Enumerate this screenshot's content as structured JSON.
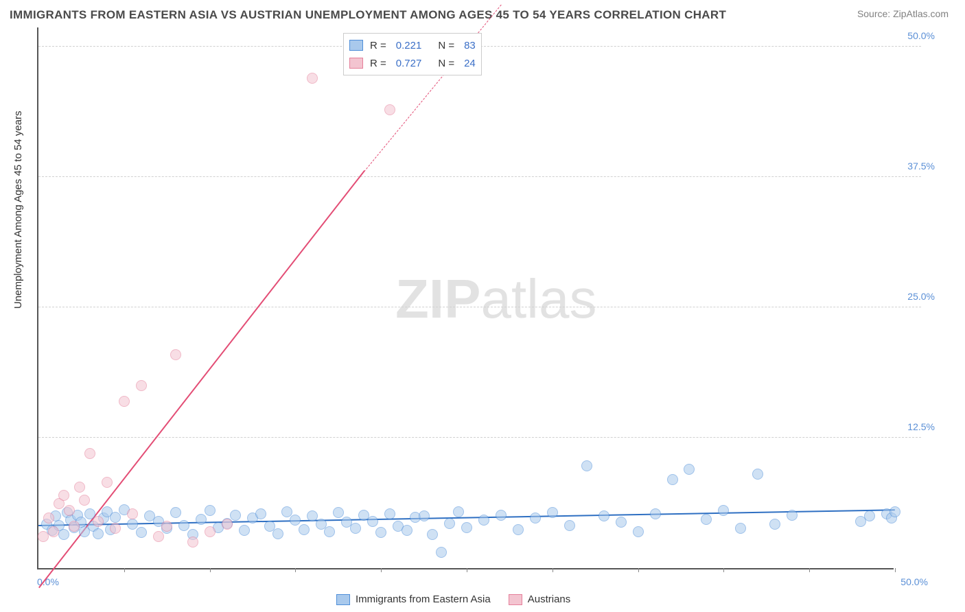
{
  "title": "IMMIGRANTS FROM EASTERN ASIA VS AUSTRIAN UNEMPLOYMENT AMONG AGES 45 TO 54 YEARS CORRELATION CHART",
  "source": "Source: ZipAtlas.com",
  "y_axis_label": "Unemployment Among Ages 45 to 54 years",
  "watermark": {
    "zip": "ZIP",
    "atlas": "atlas"
  },
  "chart": {
    "type": "scatter",
    "xlim": [
      0,
      50
    ],
    "ylim": [
      0,
      52
    ],
    "x_ticks": [
      0,
      5,
      10,
      15,
      20,
      25,
      30,
      35,
      40,
      45,
      50
    ],
    "x_tick_labels": {
      "min": "0.0%",
      "max": "50.0%"
    },
    "y_grid": [
      {
        "val": 12.5,
        "label": "12.5%"
      },
      {
        "val": 25.0,
        "label": "25.0%"
      },
      {
        "val": 37.5,
        "label": "37.5%"
      },
      {
        "val": 50.0,
        "label": "50.0%"
      }
    ],
    "background_color": "#ffffff",
    "grid_color": "#d0d0d0",
    "axis_color": "#555555",
    "point_radius": 8,
    "point_opacity": 0.55,
    "series": [
      {
        "name": "Immigrants from Eastern Asia",
        "color_stroke": "#4f8fd9",
        "color_fill": "#a9c9ec",
        "R": "0.221",
        "N": "83",
        "trend": {
          "x1": 0,
          "y1": 4.0,
          "x2": 50,
          "y2": 5.5,
          "color": "#2e6fc2",
          "width": 2
        },
        "points": [
          [
            0.5,
            4.2
          ],
          [
            0.8,
            3.6
          ],
          [
            1.0,
            5.0
          ],
          [
            1.2,
            4.1
          ],
          [
            1.5,
            3.2
          ],
          [
            1.7,
            5.3
          ],
          [
            1.9,
            4.6
          ],
          [
            2.1,
            3.9
          ],
          [
            2.3,
            5.1
          ],
          [
            2.5,
            4.4
          ],
          [
            2.7,
            3.5
          ],
          [
            3.0,
            5.2
          ],
          [
            3.2,
            4.0
          ],
          [
            3.5,
            3.3
          ],
          [
            3.8,
            4.8
          ],
          [
            4.0,
            5.4
          ],
          [
            4.2,
            3.7
          ],
          [
            4.5,
            4.9
          ],
          [
            5.0,
            5.6
          ],
          [
            5.5,
            4.2
          ],
          [
            6.0,
            3.4
          ],
          [
            6.5,
            5.0
          ],
          [
            7.0,
            4.5
          ],
          [
            7.5,
            3.8
          ],
          [
            8.0,
            5.3
          ],
          [
            8.5,
            4.1
          ],
          [
            9.0,
            3.2
          ],
          [
            9.5,
            4.7
          ],
          [
            10.0,
            5.5
          ],
          [
            10.5,
            3.9
          ],
          [
            11.0,
            4.3
          ],
          [
            11.5,
            5.1
          ],
          [
            12.0,
            3.6
          ],
          [
            12.5,
            4.8
          ],
          [
            13.0,
            5.2
          ],
          [
            13.5,
            4.0
          ],
          [
            14.0,
            3.3
          ],
          [
            14.5,
            5.4
          ],
          [
            15.0,
            4.6
          ],
          [
            15.5,
            3.7
          ],
          [
            16.0,
            5.0
          ],
          [
            16.5,
            4.2
          ],
          [
            17.0,
            3.5
          ],
          [
            17.5,
            5.3
          ],
          [
            18.0,
            4.4
          ],
          [
            18.5,
            3.8
          ],
          [
            19.0,
            5.1
          ],
          [
            19.5,
            4.5
          ],
          [
            20.0,
            3.4
          ],
          [
            20.5,
            5.2
          ],
          [
            21.0,
            4.0
          ],
          [
            21.5,
            3.6
          ],
          [
            22.0,
            4.9
          ],
          [
            22.5,
            5.0
          ],
          [
            23.0,
            3.2
          ],
          [
            23.5,
            1.5
          ],
          [
            24.0,
            4.3
          ],
          [
            24.5,
            5.4
          ],
          [
            25.0,
            3.9
          ],
          [
            26.0,
            4.6
          ],
          [
            27.0,
            5.1
          ],
          [
            28.0,
            3.7
          ],
          [
            29.0,
            4.8
          ],
          [
            30.0,
            5.3
          ],
          [
            31.0,
            4.1
          ],
          [
            32.0,
            9.8
          ],
          [
            33.0,
            5.0
          ],
          [
            34.0,
            4.4
          ],
          [
            35.0,
            3.5
          ],
          [
            36.0,
            5.2
          ],
          [
            37.0,
            8.5
          ],
          [
            38.0,
            9.5
          ],
          [
            39.0,
            4.7
          ],
          [
            40.0,
            5.5
          ],
          [
            41.0,
            3.8
          ],
          [
            42.0,
            9.0
          ],
          [
            43.0,
            4.2
          ],
          [
            44.0,
            5.1
          ],
          [
            48.0,
            4.5
          ],
          [
            48.5,
            5.0
          ],
          [
            49.5,
            5.2
          ],
          [
            49.8,
            4.8
          ],
          [
            50.0,
            5.4
          ]
        ]
      },
      {
        "name": "Austrians",
        "color_stroke": "#e57f9a",
        "color_fill": "#f3c4d0",
        "R": "0.727",
        "N": "24",
        "trend": {
          "x1": 0,
          "y1": -2.0,
          "x2": 19,
          "y2": 38.0,
          "color": "#e34d75",
          "width": 2,
          "dash_after_x": 19,
          "dash_x2": 27,
          "dash_y2": 54
        },
        "points": [
          [
            0.3,
            3.0
          ],
          [
            0.6,
            4.8
          ],
          [
            0.9,
            3.5
          ],
          [
            1.2,
            6.2
          ],
          [
            1.5,
            7.0
          ],
          [
            1.8,
            5.5
          ],
          [
            2.1,
            4.0
          ],
          [
            2.4,
            7.8
          ],
          [
            2.7,
            6.5
          ],
          [
            3.0,
            11.0
          ],
          [
            3.5,
            4.5
          ],
          [
            4.0,
            8.2
          ],
          [
            4.5,
            3.8
          ],
          [
            5.0,
            16.0
          ],
          [
            5.5,
            5.2
          ],
          [
            6.0,
            17.5
          ],
          [
            7.0,
            3.0
          ],
          [
            7.5,
            4.0
          ],
          [
            8.0,
            20.5
          ],
          [
            9.0,
            2.5
          ],
          [
            10.0,
            3.5
          ],
          [
            11.0,
            4.2
          ],
          [
            16.0,
            47.0
          ],
          [
            20.5,
            44.0
          ]
        ]
      }
    ]
  },
  "legend_top": {
    "rows": [
      {
        "swatch_fill": "#a9c9ec",
        "swatch_stroke": "#4f8fd9",
        "R_label": "R  =",
        "R": "0.221",
        "N_label": "N  =",
        "N": "83"
      },
      {
        "swatch_fill": "#f3c4d0",
        "swatch_stroke": "#e57f9a",
        "R_label": "R  =",
        "R": "0.727",
        "N_label": "N  =",
        "N": "24"
      }
    ]
  },
  "legend_bottom": {
    "items": [
      {
        "swatch_fill": "#a9c9ec",
        "swatch_stroke": "#4f8fd9",
        "label": "Immigrants from Eastern Asia"
      },
      {
        "swatch_fill": "#f3c4d0",
        "swatch_stroke": "#e57f9a",
        "label": "Austrians"
      }
    ]
  }
}
